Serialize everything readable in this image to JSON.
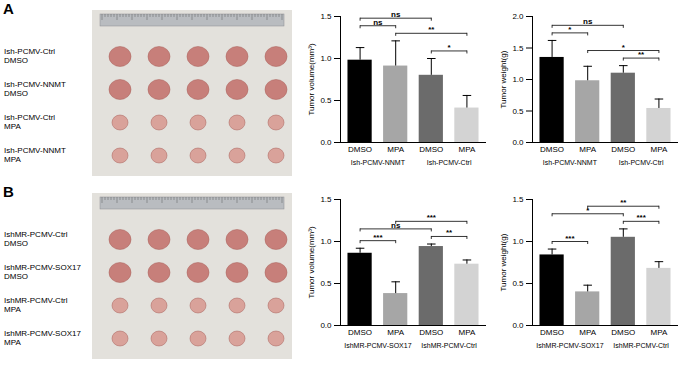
{
  "panels": [
    {
      "label": "A",
      "photo_rows": [
        [
          "Ish-PCMV-Ctrl",
          "DMSO"
        ],
        [
          "Ish-PCMV-NNMT",
          "DMSO"
        ],
        [
          "Ish-PCMV-Ctrl",
          "MPA"
        ],
        [
          "Ish-PCMV-NNMT",
          "MPA"
        ]
      ]
    },
    {
      "label": "B",
      "photo_rows": [
        [
          "IshMR-PCMV-Ctrl",
          "DMSO"
        ],
        [
          "IshMR-PCMV-SOX17",
          "DMSO"
        ],
        [
          "IshMR-PCMV-Ctrl",
          "MPA"
        ],
        [
          "IshMR-PCMV-SOX17",
          "MPA"
        ]
      ]
    }
  ],
  "chart_data": [
    {
      "type": "bar",
      "y_label": "Tumor volume(mm³)",
      "categories": [
        "DMSO",
        "MPA",
        "DMSO",
        "MPA"
      ],
      "groups": [
        "Ish-PCMV-NNMT",
        "Ish-PCMV-Ctrl"
      ],
      "values": [
        0.98,
        0.91,
        0.8,
        0.41
      ],
      "errors": [
        0.15,
        0.3,
        0.2,
        0.15
      ],
      "colors": [
        "#000000",
        "#a6a6a6",
        "#6b6b6b",
        "#d3d3d3"
      ],
      "ylim": [
        0,
        1.5
      ],
      "yticks": [
        {
          "value": 0,
          "label": "0.0"
        },
        {
          "value": 0.5,
          "label": "0.5"
        },
        {
          "value": 1,
          "label": "1.0"
        },
        {
          "value": 1.5,
          "label": "1.5"
        }
      ],
      "significance": [
        {
          "pair": [
            2,
            3
          ],
          "label": "*"
        },
        {
          "pair": [
            1,
            3
          ],
          "label": "**"
        },
        {
          "pair": [
            0,
            1
          ],
          "label": "ns"
        },
        {
          "pair": [
            0,
            2
          ],
          "label": "ns"
        }
      ]
    },
    {
      "type": "bar",
      "y_label": "Tumor weight(g)",
      "categories": [
        "DMSO",
        "MPA",
        "DMSO",
        "MPA"
      ],
      "groups": [
        "Ish-PCMV-NNMT",
        "Ish-PCMV-Ctrl"
      ],
      "values": [
        1.35,
        0.98,
        1.1,
        0.54
      ],
      "errors": [
        0.27,
        0.23,
        0.12,
        0.15
      ],
      "colors": [
        "#000000",
        "#a6a6a6",
        "#6b6b6b",
        "#d3d3d3"
      ],
      "ylim": [
        0,
        2
      ],
      "yticks": [
        {
          "value": 0,
          "label": "0.0"
        },
        {
          "value": 0.5,
          "label": "0.5"
        },
        {
          "value": 1,
          "label": "1.0"
        },
        {
          "value": 1.5,
          "label": "1.5"
        },
        {
          "value": 2,
          "label": "2.0"
        }
      ],
      "significance": [
        {
          "pair": [
            2,
            3
          ],
          "label": "**"
        },
        {
          "pair": [
            1,
            3
          ],
          "label": "*"
        },
        {
          "pair": [
            0,
            1
          ],
          "label": "*"
        },
        {
          "pair": [
            0,
            2
          ],
          "label": "ns"
        }
      ]
    },
    {
      "type": "bar",
      "y_label": "Tumor volume(mm³)",
      "categories": [
        "DMSO",
        "MPA",
        "DMSO",
        "MPA"
      ],
      "groups": [
        "IshMR-PCMV-SOX17",
        "IshMR-PCMV-Ctrl"
      ],
      "values": [
        0.86,
        0.38,
        0.94,
        0.73
      ],
      "errors": [
        0.06,
        0.14,
        0.03,
        0.05
      ],
      "colors": [
        "#000000",
        "#a6a6a6",
        "#6b6b6b",
        "#d3d3d3"
      ],
      "ylim": [
        0,
        1.5
      ],
      "yticks": [
        {
          "value": 0,
          "label": "0.0"
        },
        {
          "value": 0.5,
          "label": "0.5"
        },
        {
          "value": 1,
          "label": "1.0"
        },
        {
          "value": 1.5,
          "label": "1.5"
        }
      ],
      "significance": [
        {
          "pair": [
            2,
            3
          ],
          "label": "**"
        },
        {
          "pair": [
            0,
            1
          ],
          "label": "***"
        },
        {
          "pair": [
            0,
            2
          ],
          "label": "ns"
        },
        {
          "pair": [
            1,
            3
          ],
          "label": "***"
        }
      ]
    },
    {
      "type": "bar",
      "y_label": "Tumor weight(g)",
      "categories": [
        "DMSO",
        "MPA",
        "DMSO",
        "MPA"
      ],
      "groups": [
        "IshMR-PCMV-SOX17",
        "IshMR-PCMV-Ctrl"
      ],
      "values": [
        0.84,
        0.4,
        1.05,
        0.68
      ],
      "errors": [
        0.07,
        0.08,
        0.1,
        0.08
      ],
      "colors": [
        "#000000",
        "#a6a6a6",
        "#6b6b6b",
        "#d3d3d3"
      ],
      "ylim": [
        0,
        1.5
      ],
      "yticks": [
        {
          "value": 0,
          "label": "0.0"
        },
        {
          "value": 0.5,
          "label": "0.5"
        },
        {
          "value": 1,
          "label": "1.0"
        },
        {
          "value": 1.5,
          "label": "1.5"
        }
      ],
      "significance": [
        {
          "pair": [
            0,
            1
          ],
          "label": "***"
        },
        {
          "pair": [
            2,
            3
          ],
          "label": "***"
        },
        {
          "pair": [
            0,
            2
          ],
          "label": "*"
        },
        {
          "pair": [
            1,
            3
          ],
          "label": "**"
        }
      ]
    }
  ]
}
